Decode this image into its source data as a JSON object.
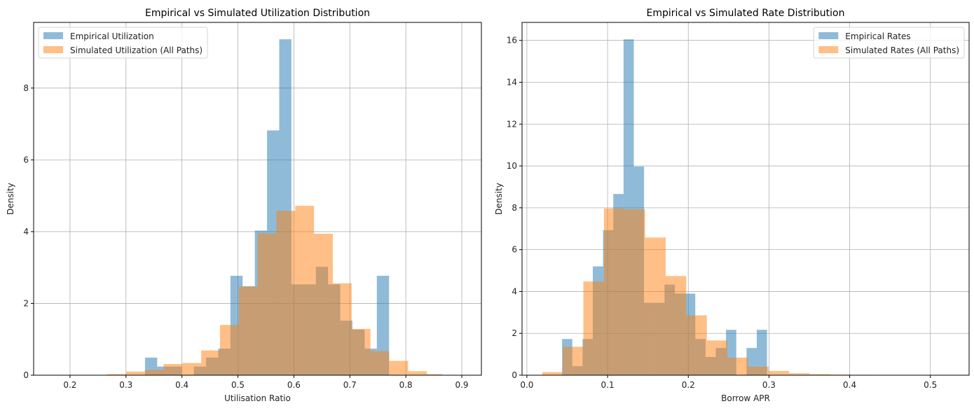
{
  "chart_data": [
    {
      "type": "bar",
      "subtype": "histogram",
      "title": "Empirical vs Simulated Utilization Distribution",
      "xlabel": "Utilisation Ratio",
      "ylabel": "Density",
      "xlim": [
        0.135,
        0.935
      ],
      "ylim": [
        0,
        9.83
      ],
      "xticks": [
        "0.2",
        "0.3",
        "0.4",
        "0.5",
        "0.6",
        "0.7",
        "0.8",
        "0.9"
      ],
      "xtick_values": [
        0.2,
        0.3,
        0.4,
        0.5,
        0.6,
        0.7,
        0.8,
        0.9
      ],
      "yticks": [
        "0",
        "2",
        "4",
        "6",
        "8"
      ],
      "ytick_values": [
        0,
        2,
        4,
        6,
        8
      ],
      "grid": true,
      "legend_position": "upper-left",
      "series": [
        {
          "name": "Empirical Utilization",
          "color": "#1f77b4",
          "alpha": 0.5,
          "bin_edges": [
            0.334,
            0.3558,
            0.3776,
            0.3994,
            0.4212,
            0.443,
            0.4648,
            0.4866,
            0.5084,
            0.5302,
            0.552,
            0.5738,
            0.5956,
            0.6174,
            0.6392,
            0.661,
            0.6828,
            0.7046,
            0.7264,
            0.7482,
            0.77
          ],
          "values": [
            0.49,
            0.24,
            0.24,
            0.0,
            0.24,
            0.49,
            0.74,
            2.77,
            2.48,
            4.03,
            6.82,
            9.36,
            2.53,
            2.53,
            3.02,
            2.53,
            1.52,
            1.27,
            0.74,
            2.77
          ]
        },
        {
          "name": "Simulated Utilization (All Paths)",
          "color": "#ff7f0e",
          "alpha": 0.5,
          "bin_edges": [
            0.266,
            0.3,
            0.3336,
            0.3672,
            0.4008,
            0.4344,
            0.468,
            0.5016,
            0.5352,
            0.5688,
            0.6024,
            0.636,
            0.6696,
            0.7032,
            0.7368,
            0.7704,
            0.804,
            0.8376,
            0.865
          ],
          "values": [
            0.03,
            0.1,
            0.15,
            0.31,
            0.34,
            0.69,
            1.4,
            2.47,
            3.95,
            4.58,
            4.72,
            3.94,
            2.56,
            1.29,
            0.67,
            0.4,
            0.11,
            0.03
          ]
        }
      ]
    },
    {
      "type": "bar",
      "subtype": "histogram",
      "title": "Empirical vs Simulated Rate Distribution",
      "xlabel": "Borrow APR",
      "ylabel": "Density",
      "xlim": [
        -0.006,
        0.548
      ],
      "ylim": [
        0,
        16.86
      ],
      "xticks": [
        "0.0",
        "0.1",
        "0.2",
        "0.3",
        "0.4",
        "0.5"
      ],
      "xtick_values": [
        0.0,
        0.1,
        0.2,
        0.3,
        0.4,
        0.5
      ],
      "yticks": [
        "0",
        "2",
        "4",
        "6",
        "8",
        "10",
        "12",
        "14",
        "16"
      ],
      "ytick_values": [
        0,
        2,
        4,
        6,
        8,
        10,
        12,
        14,
        16
      ],
      "grid": true,
      "legend_position": "upper-right",
      "series": [
        {
          "name": "Empirical Rates",
          "color": "#1f77b4",
          "alpha": 0.5,
          "bin_edges": [
            0.0436,
            0.0563,
            0.069,
            0.0817,
            0.0944,
            0.1071,
            0.1198,
            0.1325,
            0.1452,
            0.1579,
            0.1706,
            0.1833,
            0.196,
            0.2087,
            0.2214,
            0.2341,
            0.2468,
            0.2595,
            0.2722,
            0.2849,
            0.2976
          ],
          "values": [
            1.73,
            0.43,
            1.73,
            5.2,
            6.93,
            8.66,
            16.05,
            9.97,
            3.46,
            3.46,
            4.33,
            3.9,
            3.9,
            1.73,
            0.87,
            1.3,
            2.17,
            0.0,
            1.3,
            2.17
          ]
        },
        {
          "name": "Simulated Rates (All Paths)",
          "color": "#ff7f0e",
          "alpha": 0.5,
          "bin_edges": [
            0.019,
            0.0445,
            0.07,
            0.0955,
            0.121,
            0.1465,
            0.172,
            0.1975,
            0.223,
            0.2485,
            0.274,
            0.2995,
            0.325,
            0.3505,
            0.376,
            0.4015,
            0.427
          ],
          "values": [
            0.15,
            1.36,
            4.48,
            7.97,
            7.93,
            6.58,
            4.74,
            2.86,
            1.66,
            0.84,
            0.41,
            0.2,
            0.09,
            0.05,
            0.03,
            0.02
          ]
        }
      ]
    }
  ]
}
